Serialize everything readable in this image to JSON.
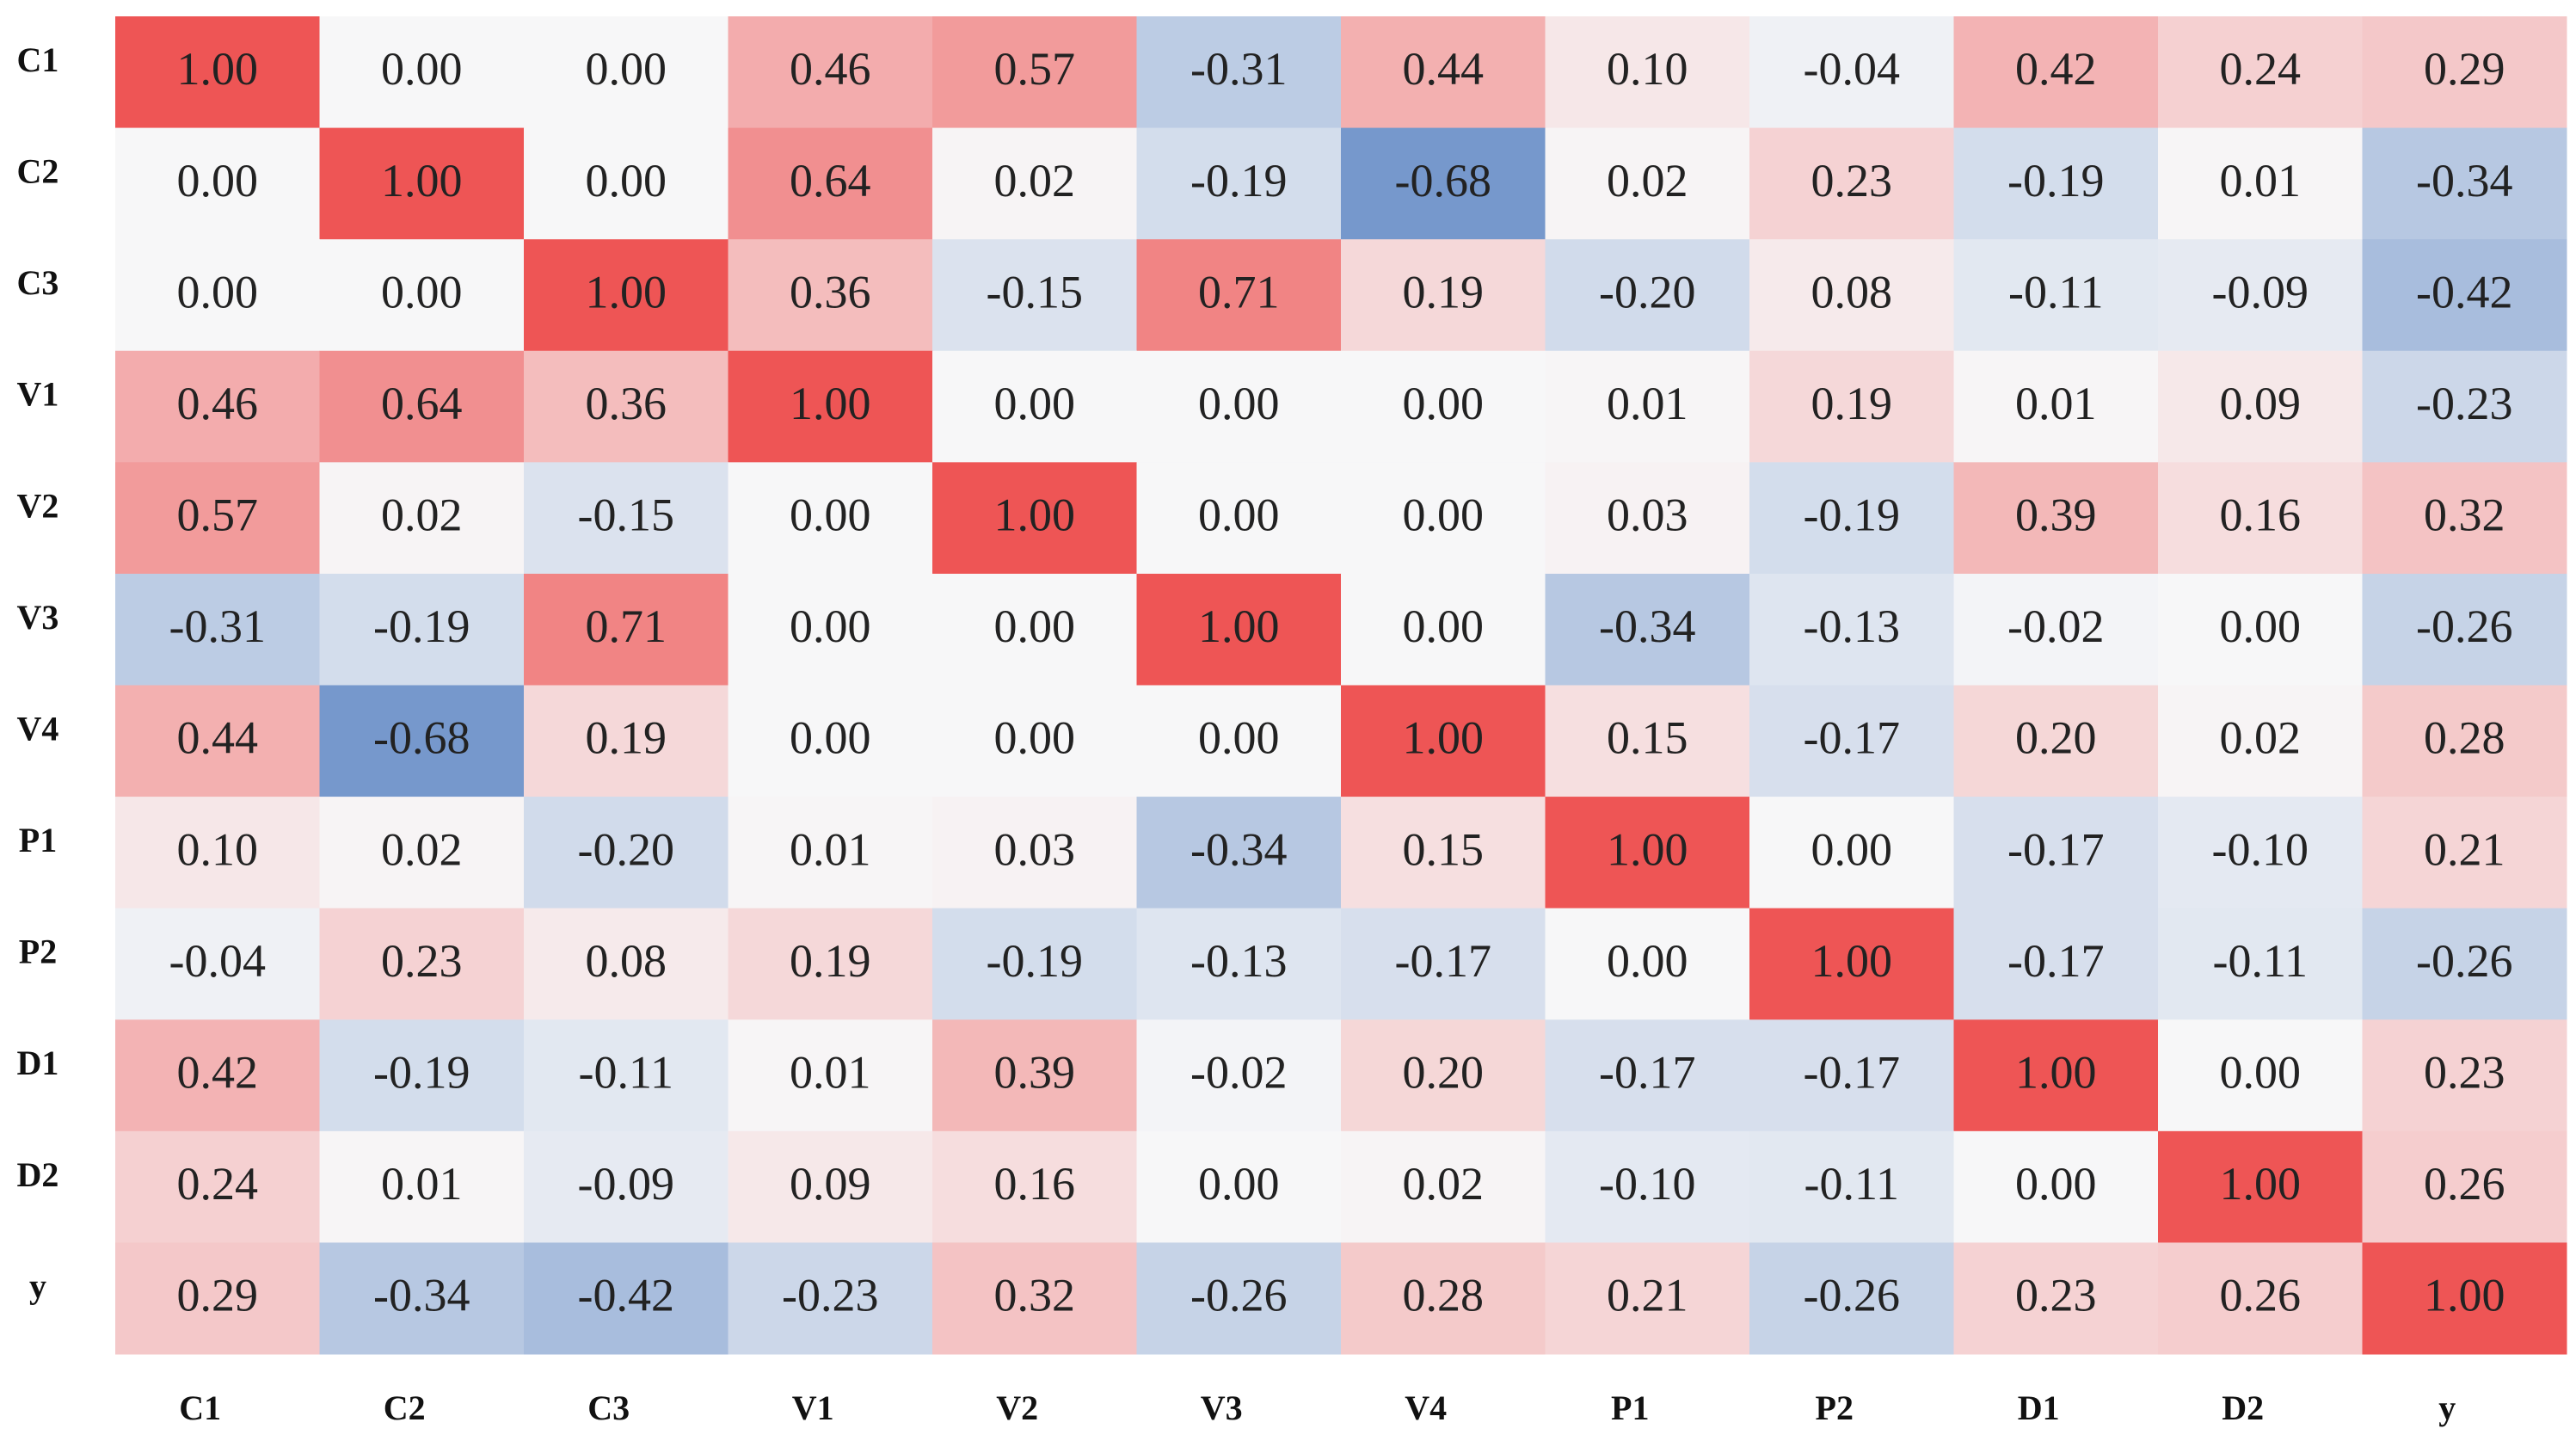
{
  "chart_data": {
    "type": "heatmap",
    "x_categories": [
      "C1",
      "C2",
      "C3",
      "V1",
      "V2",
      "V3",
      "V4",
      "P1",
      "P2",
      "D1",
      "D2",
      "y"
    ],
    "y_categories": [
      "C1",
      "C2",
      "C3",
      "V1",
      "V2",
      "V3",
      "V4",
      "P1",
      "P2",
      "D1",
      "D2",
      "y"
    ],
    "values": [
      [
        1,
        0,
        0,
        0.46,
        0.57,
        -0.31,
        0.44,
        0.1,
        -0.04,
        0.42,
        0.24,
        0.29
      ],
      [
        0,
        1,
        0,
        0.64,
        0.02,
        -0.19,
        -0.68,
        0.02,
        0.23,
        -0.19,
        0.01,
        -0.34
      ],
      [
        0,
        0,
        1,
        0.36,
        -0.15,
        0.71,
        0.19,
        -0.2,
        0.08,
        -0.11,
        -0.09,
        -0.42
      ],
      [
        0.46,
        0.64,
        0.36,
        1,
        0,
        0,
        0,
        0.01,
        0.19,
        0.01,
        0.09,
        -0.23
      ],
      [
        0.57,
        0.02,
        -0.15,
        0,
        1,
        0,
        0,
        0.03,
        -0.19,
        0.39,
        0.16,
        0.32
      ],
      [
        -0.31,
        -0.19,
        0.71,
        0,
        0,
        1,
        0,
        -0.34,
        -0.13,
        -0.02,
        0,
        -0.26
      ],
      [
        0.44,
        -0.68,
        0.19,
        0,
        0,
        0,
        1,
        0.15,
        -0.17,
        0.2,
        0.02,
        0.28
      ],
      [
        0.1,
        0.02,
        -0.2,
        0.01,
        0.03,
        -0.34,
        0.15,
        1,
        0,
        -0.17,
        -0.1,
        0.21
      ],
      [
        -0.04,
        0.23,
        0.08,
        0.19,
        -0.19,
        -0.13,
        -0.17,
        0,
        1,
        -0.17,
        -0.11,
        -0.26
      ],
      [
        0.42,
        -0.19,
        -0.11,
        0.01,
        0.39,
        -0.02,
        0.2,
        -0.17,
        -0.17,
        1,
        0,
        0.23
      ],
      [
        0.24,
        0.01,
        -0.09,
        0.09,
        0.16,
        0,
        0.02,
        -0.1,
        -0.11,
        0,
        1,
        0.26
      ],
      [
        0.29,
        -0.34,
        -0.42,
        -0.23,
        0.32,
        -0.26,
        0.28,
        0.21,
        -0.26,
        0.23,
        0.26,
        1
      ]
    ],
    "value_labels": [
      [
        "1.00",
        "0.00",
        "0.00",
        "0.46",
        "0.57",
        "-0.31",
        "0.44",
        "0.10",
        "-0.04",
        "0.42",
        "0.24",
        "0.29"
      ],
      [
        "0.00",
        "1.00",
        "0.00",
        "0.64",
        "0.02",
        "-0.19",
        "-0.68",
        "0.02",
        "0.23",
        "-0.19",
        "0.01",
        "-0.34"
      ],
      [
        "0.00",
        "0.00",
        "1.00",
        "0.36",
        "-0.15",
        "0.71",
        "0.19",
        "-0.20",
        "0.08",
        "-0.11",
        "-0.09",
        "-0.42"
      ],
      [
        "0.46",
        "0.64",
        "0.36",
        "1.00",
        "0.00",
        "0.00",
        "0.00",
        "0.01",
        "0.19",
        "0.01",
        "0.09",
        "-0.23"
      ],
      [
        "0.57",
        "0.02",
        "-0.15",
        "0.00",
        "1.00",
        "0.00",
        "0.00",
        "0.03",
        "-0.19",
        "0.39",
        "0.16",
        "0.32"
      ],
      [
        "-0.31",
        "-0.19",
        "0.71",
        "0.00",
        "0.00",
        "1.00",
        "0.00",
        "-0.34",
        "-0.13",
        "-0.02",
        "0.00",
        "-0.26"
      ],
      [
        "0.44",
        "-0.68",
        "0.19",
        "0.00",
        "0.00",
        "0.00",
        "1.00",
        "0.15",
        "-0.17",
        "0.20",
        "0.02",
        "0.28"
      ],
      [
        "0.10",
        "0.02",
        "-0.20",
        "0.01",
        "0.03",
        "-0.34",
        "0.15",
        "1.00",
        "0.00",
        "-0.17",
        "-0.10",
        "0.21"
      ],
      [
        "-0.04",
        "0.23",
        "0.08",
        "0.19",
        "-0.19",
        "-0.13",
        "-0.17",
        "0.00",
        "1.00",
        "-0.17",
        "-0.11",
        "-0.26"
      ],
      [
        "0.42",
        "-0.19",
        "-0.11",
        "0.01",
        "0.39",
        "-0.02",
        "0.20",
        "-0.17",
        "-0.17",
        "1.00",
        "0.00",
        "0.23"
      ],
      [
        "0.24",
        "0.01",
        "-0.09",
        "0.09",
        "0.16",
        "0.00",
        "0.02",
        "-0.10",
        "-0.11",
        "0.00",
        "1.00",
        "0.26"
      ],
      [
        "0.29",
        "-0.34",
        "-0.42",
        "-0.23",
        "0.32",
        "-0.26",
        "0.28",
        "0.21",
        "-0.26",
        "0.23",
        "0.26",
        "1.00"
      ]
    ],
    "color_range": [
      -1,
      1
    ],
    "colors": [
      "#3a6cb8",
      "#f7f7f8",
      "#ee5555"
    ]
  }
}
